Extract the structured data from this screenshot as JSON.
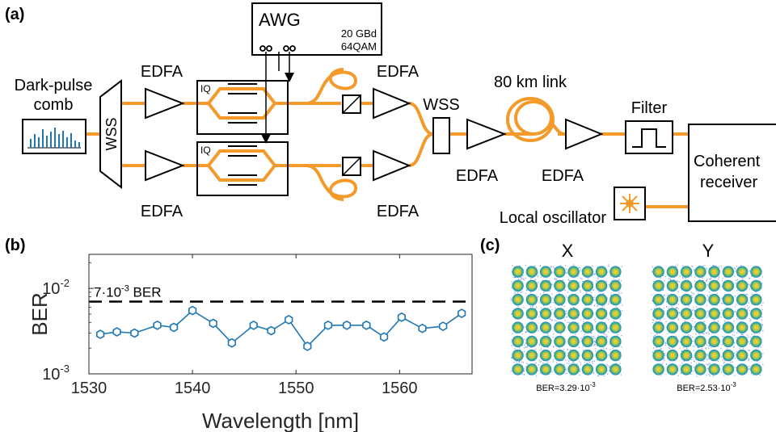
{
  "panel_a": {
    "label": "(a)",
    "comb_label_line1": "Dark-pulse",
    "comb_label_line2": "comb",
    "wss_left": "WSS",
    "edfa_top_left": "EDFA",
    "edfa_bottom_left": "EDFA",
    "iq_top": "IQ",
    "iq_bottom": "IQ",
    "awg_title": "AWG",
    "awg_rate": "20 GBd",
    "awg_format": "64QAM",
    "edfa_top_right": "EDFA",
    "edfa_bottom_right": "EDFA",
    "wss_right": "WSS",
    "edfa_after_wss": "EDFA",
    "link_label": "80 km link",
    "edfa_after_link": "EDFA",
    "filter_label": "Filter",
    "receiver_line1": "Coherent",
    "receiver_line2": "receiver",
    "lo_label": "Local oscillator",
    "fiber_color": "#f39a2b"
  },
  "panel_c": {
    "label": "(c)",
    "x_title": "X",
    "y_title": "Y",
    "x_ber_prefix": "BER=3.29·10",
    "x_ber_exp": "-3",
    "y_ber_prefix": "BER=2.53·10",
    "y_ber_exp": "-3"
  },
  "chart_data": {
    "label": "(b)",
    "type": "line",
    "xlabel": "Wavelength [nm]",
    "ylabel": "BER",
    "xlim": [
      1530,
      1567
    ],
    "ylim": [
      0.001,
      0.025
    ],
    "yscale": "log",
    "xticks": [
      "1530",
      "1540",
      "1550",
      "1560"
    ],
    "yticks": [
      {
        "base": "10",
        "exp": "-3"
      },
      {
        "base": "10",
        "exp": "-2"
      }
    ],
    "threshold_label_pre": "7·10",
    "threshold_label_exp": "-3",
    "threshold_label_post": " BER",
    "threshold_value": 0.007,
    "series_color": "#1f77b4",
    "x": [
      1531.1,
      1532.7,
      1534.4,
      1536.6,
      1538.2,
      1540.0,
      1542.0,
      1543.8,
      1545.9,
      1547.6,
      1549.3,
      1551.1,
      1553.1,
      1554.9,
      1556.8,
      1558.5,
      1560.2,
      1562.2,
      1564.2,
      1566.0
    ],
    "y": [
      0.0029,
      0.0031,
      0.003,
      0.0037,
      0.0035,
      0.0055,
      0.0039,
      0.0023,
      0.0037,
      0.0032,
      0.0043,
      0.0021,
      0.0037,
      0.0037,
      0.0037,
      0.0027,
      0.0046,
      0.0034,
      0.0036,
      0.0051
    ]
  }
}
